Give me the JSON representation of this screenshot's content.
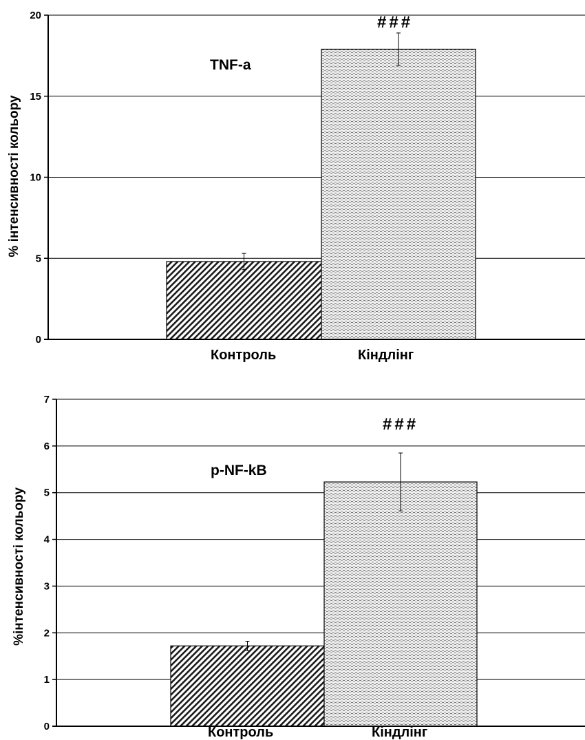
{
  "charts": [
    {
      "type": "bar",
      "categories": [
        "Контроль",
        "Кіндлінг"
      ],
      "values": [
        4.8,
        17.9
      ],
      "errors": [
        0.5,
        1.0
      ],
      "ylabel": "% інтенсивності кольору",
      "inner_label": "TNF-a",
      "significance": "###",
      "ylim": [
        0,
        20
      ],
      "yticks": [
        0,
        5,
        10,
        15,
        20
      ],
      "grid": true,
      "colors": {
        "control": "#000000",
        "kindling": "#777777"
      }
    },
    {
      "type": "bar",
      "categories": [
        "Контроль",
        "Кіндлінг"
      ],
      "values": [
        1.72,
        5.23
      ],
      "errors": [
        0.1,
        0.62
      ],
      "ylabel": "%інтенсивності кольору",
      "inner_label": "p-NF-kB",
      "significance": "###",
      "ylim": [
        0,
        7
      ],
      "yticks": [
        0,
        1,
        2,
        3,
        4,
        5,
        6,
        7
      ],
      "grid": true,
      "colors": {
        "control": "#000000",
        "kindling": "#777777"
      }
    }
  ]
}
